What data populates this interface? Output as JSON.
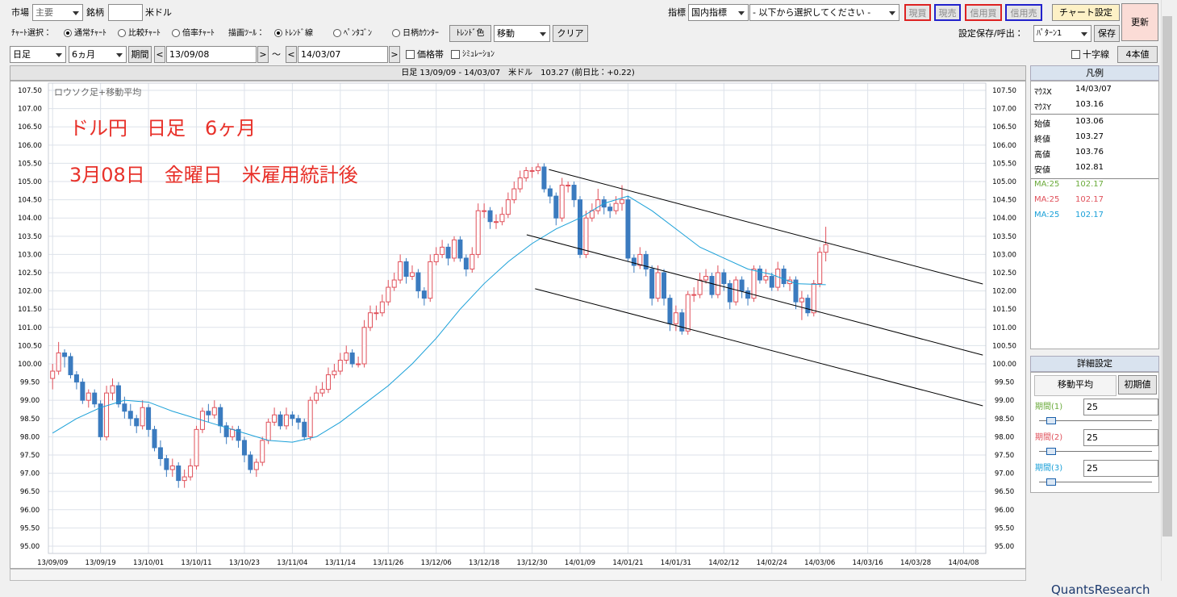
{
  "ui": {
    "market_label": "市場",
    "market": "主要",
    "symbol_label": "銘柄",
    "symbol": "米ドル",
    "indicator_label": "指標",
    "indicator": "国内指標",
    "indicator_select": "- 以下から選択してください -",
    "buy_spot": "現買",
    "sell_spot": "現売",
    "buy_margin": "信用買",
    "sell_margin": "信用売",
    "chart_settings": "チャート設定",
    "refresh": "更新",
    "chart_select_label": "ﾁｬｰﾄ選択：",
    "chart_modes": [
      "通常ﾁｬｰﾄ",
      "比較ﾁｬｰﾄ",
      "倍率ﾁｬｰﾄ"
    ],
    "draw_tool_label": "描画ﾂｰﾙ：",
    "draw_tools": [
      "ﾄﾚﾝﾄﾞ線",
      "ﾍﾟﾝﾀｺﾞﾝ",
      "日柄ｶｳﾝﾀｰ"
    ],
    "trend_color": "ﾄﾚﾝﾄﾞ色",
    "move": "移動",
    "clear": "クリア",
    "save_label": "設定保存/呼出：",
    "pattern": "ﾊﾟﾀｰﾝ1",
    "save": "保存",
    "bar_type": "日足",
    "span": "6ヵ月",
    "period": "期間",
    "prev": "<",
    "next": ">",
    "tilde": "～",
    "date_from": "13/09/08",
    "date_to": "14/03/07",
    "price_band": "価格帯",
    "simulation": "ｼﾐｭﾚｰｼｮﾝ",
    "crosshair": "十字線",
    "four_values": "4本値",
    "chart_header": "日足 13/09/09 - 14/03/07　米ドル　103.27 (前日比：+0.22)",
    "legend_title": "凡例",
    "legend_rows": [
      [
        "ﾏｳｽX",
        "14/03/07"
      ],
      [
        "ﾏｳｽY",
        "103.16"
      ],
      [
        "始値",
        "103.06"
      ],
      [
        "終値",
        "103.27"
      ],
      [
        "高値",
        "103.76"
      ],
      [
        "安値",
        "102.81"
      ],
      [
        "MA:25",
        "102.17"
      ],
      [
        "MA:25",
        "102.17"
      ],
      [
        "MA:25",
        "102.17"
      ]
    ],
    "detail_title": "詳細設定",
    "tab_ma": "移動平均",
    "defaults": "初期値",
    "periods": [
      [
        "期間(1)",
        "25"
      ],
      [
        "期間(2)",
        "25"
      ],
      [
        "期間(3)",
        "25"
      ]
    ],
    "logo": "QuantsResearch"
  },
  "chart_data": {
    "type": "candlestick",
    "subtitle": "ロウソク足+移動平均",
    "annotations": [
      "ドル円　日足　6ヶ月",
      "3月08日　金曜日　米雇用統計後"
    ],
    "up_color": "#e0505a",
    "down_color": "#3b7bbf",
    "grid": true,
    "xlim": [
      -0.7,
      155.7
    ],
    "ylim": [
      94.8,
      107.7
    ],
    "xticks": [
      {
        "value": 0,
        "label": "13/09/09"
      },
      {
        "value": 8,
        "label": "13/09/19"
      },
      {
        "value": 16,
        "label": "13/10/01"
      },
      {
        "value": 24,
        "label": "13/10/11"
      },
      {
        "value": 32,
        "label": "13/10/23"
      },
      {
        "value": 40,
        "label": "13/11/04"
      },
      {
        "value": 48,
        "label": "13/11/14"
      },
      {
        "value": 56,
        "label": "13/11/26"
      },
      {
        "value": 64,
        "label": "13/12/06"
      },
      {
        "value": 72,
        "label": "13/12/18"
      },
      {
        "value": 80,
        "label": "13/12/30"
      },
      {
        "value": 88,
        "label": "14/01/09"
      },
      {
        "value": 96,
        "label": "14/01/21"
      },
      {
        "value": 104,
        "label": "14/01/31"
      },
      {
        "value": 112,
        "label": "14/02/12"
      },
      {
        "value": 120,
        "label": "14/02/24"
      },
      {
        "value": 128,
        "label": "14/03/06"
      },
      {
        "value": 136,
        "label": "14/03/16"
      },
      {
        "value": 144,
        "label": "14/03/28"
      },
      {
        "value": 152,
        "label": "14/04/08"
      }
    ],
    "yticks": [
      {
        "value": 95,
        "label": "95.00"
      },
      {
        "value": 95.5,
        "label": "95.50"
      },
      {
        "value": 96,
        "label": "96.00"
      },
      {
        "value": 96.5,
        "label": "96.50"
      },
      {
        "value": 97,
        "label": "97.00"
      },
      {
        "value": 97.5,
        "label": "97.50"
      },
      {
        "value": 98,
        "label": "98.00"
      },
      {
        "value": 98.5,
        "label": "98.50"
      },
      {
        "value": 99,
        "label": "99.00"
      },
      {
        "value": 99.5,
        "label": "99.50"
      },
      {
        "value": 100,
        "label": "100.00"
      },
      {
        "value": 100.5,
        "label": "100.50"
      },
      {
        "value": 101,
        "label": "101.00"
      },
      {
        "value": 101.5,
        "label": "101.50"
      },
      {
        "value": 102,
        "label": "102.00"
      },
      {
        "value": 102.5,
        "label": "102.50"
      },
      {
        "value": 103,
        "label": "103.00"
      },
      {
        "value": 103.5,
        "label": "103.50"
      },
      {
        "value": 104,
        "label": "104.00"
      },
      {
        "value": 104.5,
        "label": "104.50"
      },
      {
        "value": 105,
        "label": "105.00"
      },
      {
        "value": 105.5,
        "label": "105.50"
      },
      {
        "value": 106,
        "label": "106.00"
      },
      {
        "value": 106.5,
        "label": "106.50"
      },
      {
        "value": 107,
        "label": "107.00"
      },
      {
        "value": 107.5,
        "label": "107.50"
      }
    ],
    "candles": [
      [
        99.6,
        100.0,
        99.3,
        99.8
      ],
      [
        99.8,
        100.6,
        99.7,
        100.3
      ],
      [
        100.3,
        100.4,
        99.9,
        100.2
      ],
      [
        100.2,
        100.3,
        99.6,
        99.7
      ],
      [
        99.7,
        99.8,
        99.3,
        99.5
      ],
      [
        99.5,
        99.6,
        98.9,
        99.0
      ],
      [
        99.0,
        99.3,
        98.8,
        99.2
      ],
      [
        99.2,
        99.3,
        98.8,
        98.9
      ],
      [
        98.9,
        99.0,
        97.9,
        98.0
      ],
      [
        98.0,
        99.4,
        97.9,
        99.2
      ],
      [
        99.2,
        99.6,
        99.0,
        99.4
      ],
      [
        99.4,
        99.5,
        98.8,
        98.9
      ],
      [
        98.9,
        99.1,
        98.5,
        98.7
      ],
      [
        98.7,
        98.9,
        98.3,
        98.5
      ],
      [
        98.5,
        98.6,
        98.1,
        98.3
      ],
      [
        98.3,
        99.0,
        98.2,
        98.8
      ],
      [
        98.8,
        98.9,
        98.0,
        98.2
      ],
      [
        98.2,
        98.3,
        97.6,
        97.7
      ],
      [
        97.7,
        97.9,
        97.2,
        97.4
      ],
      [
        97.4,
        97.5,
        96.9,
        97.1
      ],
      [
        97.1,
        97.4,
        96.9,
        97.2
      ],
      [
        97.2,
        97.3,
        96.6,
        96.8
      ],
      [
        96.8,
        97.1,
        96.6,
        96.9
      ],
      [
        96.9,
        97.4,
        96.8,
        97.2
      ],
      [
        97.2,
        98.3,
        97.1,
        98.2
      ],
      [
        98.2,
        98.8,
        98.1,
        98.7
      ],
      [
        98.7,
        98.9,
        98.4,
        98.6
      ],
      [
        98.6,
        99.0,
        98.5,
        98.8
      ],
      [
        98.8,
        98.9,
        98.1,
        98.3
      ],
      [
        98.3,
        98.4,
        97.8,
        98.0
      ],
      [
        98.0,
        98.3,
        97.9,
        98.2
      ],
      [
        98.2,
        98.3,
        97.7,
        97.9
      ],
      [
        97.9,
        98.0,
        97.3,
        97.5
      ],
      [
        97.5,
        97.6,
        97.0,
        97.1
      ],
      [
        97.1,
        97.4,
        96.9,
        97.3
      ],
      [
        97.3,
        98.0,
        97.2,
        97.9
      ],
      [
        97.9,
        98.5,
        97.8,
        98.4
      ],
      [
        98.4,
        98.8,
        98.3,
        98.6
      ],
      [
        98.6,
        98.7,
        98.2,
        98.3
      ],
      [
        98.3,
        98.8,
        98.2,
        98.6
      ],
      [
        98.6,
        98.7,
        98.3,
        98.5
      ],
      [
        98.5,
        98.6,
        98.2,
        98.4
      ],
      [
        98.4,
        98.5,
        97.9,
        98.0
      ],
      [
        98.0,
        99.1,
        97.9,
        99.0
      ],
      [
        99.0,
        99.4,
        98.9,
        99.2
      ],
      [
        99.2,
        99.5,
        99.1,
        99.3
      ],
      [
        99.3,
        99.9,
        99.2,
        99.7
      ],
      [
        99.7,
        100.0,
        99.6,
        99.8
      ],
      [
        99.8,
        100.3,
        99.7,
        100.1
      ],
      [
        100.1,
        100.5,
        100.0,
        100.3
      ],
      [
        100.3,
        100.4,
        99.9,
        100.0
      ],
      [
        100.0,
        100.2,
        99.9,
        100.0
      ],
      [
        100.0,
        101.2,
        99.9,
        101.0
      ],
      [
        101.0,
        101.6,
        100.9,
        101.4
      ],
      [
        101.4,
        101.6,
        101.2,
        101.4
      ],
      [
        101.4,
        101.9,
        101.3,
        101.7
      ],
      [
        101.7,
        102.3,
        101.6,
        102.1
      ],
      [
        102.1,
        102.5,
        102.0,
        102.3
      ],
      [
        102.3,
        103.0,
        102.2,
        102.8
      ],
      [
        102.8,
        102.9,
        102.2,
        102.4
      ],
      [
        102.4,
        102.7,
        102.3,
        102.5
      ],
      [
        102.5,
        102.6,
        101.8,
        102.0
      ],
      [
        102.0,
        102.1,
        101.6,
        101.8
      ],
      [
        101.8,
        103.0,
        101.7,
        102.8
      ],
      [
        102.8,
        103.2,
        102.7,
        103.0
      ],
      [
        103.0,
        103.4,
        102.9,
        103.2
      ],
      [
        103.2,
        103.3,
        102.7,
        102.9
      ],
      [
        102.9,
        103.5,
        102.8,
        103.4
      ],
      [
        103.4,
        103.5,
        102.8,
        102.9
      ],
      [
        102.9,
        103.0,
        102.4,
        102.6
      ],
      [
        102.6,
        103.2,
        102.5,
        103.0
      ],
      [
        103.0,
        104.4,
        102.9,
        104.2
      ],
      [
        104.2,
        104.4,
        104.0,
        104.2
      ],
      [
        104.2,
        104.3,
        103.7,
        103.9
      ],
      [
        103.9,
        104.1,
        103.7,
        103.9
      ],
      [
        103.9,
        104.3,
        103.8,
        104.1
      ],
      [
        104.1,
        104.7,
        104.0,
        104.5
      ],
      [
        104.5,
        105.0,
        104.4,
        104.8
      ],
      [
        104.8,
        105.3,
        104.7,
        105.1
      ],
      [
        105.1,
        105.4,
        105.0,
        105.3
      ],
      [
        105.3,
        105.4,
        105.1,
        105.3
      ],
      [
        105.3,
        105.5,
        105.2,
        105.4
      ],
      [
        105.4,
        105.5,
        104.7,
        104.8
      ],
      [
        104.8,
        104.9,
        104.4,
        104.6
      ],
      [
        104.6,
        104.7,
        103.8,
        104.0
      ],
      [
        104.0,
        105.1,
        103.9,
        104.9
      ],
      [
        104.9,
        105.0,
        104.7,
        104.9
      ],
      [
        104.9,
        105.0,
        104.3,
        104.5
      ],
      [
        104.5,
        104.6,
        102.9,
        103.0
      ],
      [
        103.0,
        104.2,
        102.9,
        104.0
      ],
      [
        104.0,
        104.4,
        103.9,
        104.2
      ],
      [
        104.2,
        104.8,
        104.1,
        104.5
      ],
      [
        104.5,
        104.6,
        104.1,
        104.3
      ],
      [
        104.3,
        104.4,
        104.0,
        104.2
      ],
      [
        104.2,
        104.6,
        104.1,
        104.4
      ],
      [
        104.4,
        104.9,
        104.2,
        104.5
      ],
      [
        104.5,
        104.6,
        102.8,
        102.9
      ],
      [
        102.9,
        103.0,
        102.5,
        102.7
      ],
      [
        102.7,
        103.2,
        102.6,
        103.0
      ],
      [
        103.0,
        103.1,
        102.4,
        102.6
      ],
      [
        102.6,
        102.7,
        101.6,
        101.8
      ],
      [
        101.8,
        102.7,
        101.7,
        102.5
      ],
      [
        102.5,
        102.6,
        101.6,
        101.8
      ],
      [
        101.8,
        101.9,
        100.9,
        101.1
      ],
      [
        101.1,
        101.6,
        100.9,
        101.4
      ],
      [
        101.4,
        101.5,
        100.8,
        100.9
      ],
      [
        100.9,
        102.0,
        100.8,
        101.9
      ],
      [
        101.9,
        102.1,
        101.7,
        101.9
      ],
      [
        101.9,
        102.5,
        101.8,
        102.3
      ],
      [
        102.3,
        102.6,
        102.2,
        102.4
      ],
      [
        102.4,
        102.5,
        101.8,
        101.9
      ],
      [
        101.9,
        102.7,
        101.8,
        102.5
      ],
      [
        102.5,
        102.6,
        102.0,
        102.2
      ],
      [
        102.2,
        102.3,
        101.5,
        101.7
      ],
      [
        101.7,
        102.4,
        101.6,
        102.3
      ],
      [
        102.3,
        102.4,
        101.8,
        102.0
      ],
      [
        102.0,
        102.1,
        101.6,
        101.8
      ],
      [
        101.8,
        102.7,
        101.7,
        102.6
      ],
      [
        102.6,
        102.7,
        102.2,
        102.3
      ],
      [
        102.3,
        102.6,
        102.2,
        102.4
      ],
      [
        102.4,
        102.5,
        102.0,
        102.1
      ],
      [
        102.1,
        102.8,
        102.0,
        102.6
      ],
      [
        102.6,
        102.7,
        102.1,
        102.2
      ],
      [
        102.2,
        102.4,
        102.0,
        102.3
      ],
      [
        102.3,
        102.4,
        101.5,
        101.7
      ],
      [
        101.7,
        102.0,
        101.2,
        101.8
      ],
      [
        101.8,
        101.9,
        101.3,
        101.4
      ],
      [
        101.4,
        102.3,
        101.3,
        102.2
      ],
      [
        102.2,
        103.2,
        102.1,
        103.06
      ],
      [
        103.06,
        103.76,
        102.81,
        103.27
      ]
    ],
    "ma": {
      "color": "#1aa0d8",
      "x": [
        0,
        4,
        8,
        12,
        16,
        20,
        24,
        28,
        32,
        36,
        40,
        44,
        48,
        52,
        56,
        60,
        64,
        68,
        72,
        76,
        80,
        84,
        88,
        92,
        96,
        100,
        104,
        108,
        112,
        116,
        120,
        124,
        129
      ],
      "values": [
        98.1,
        98.5,
        98.8,
        99.0,
        98.95,
        98.7,
        98.5,
        98.3,
        98.1,
        97.9,
        97.85,
        98.0,
        98.4,
        98.9,
        99.4,
        100.0,
        100.7,
        101.5,
        102.2,
        102.8,
        103.3,
        103.7,
        104.0,
        104.4,
        104.6,
        104.2,
        103.7,
        103.2,
        102.9,
        102.6,
        102.45,
        102.2,
        102.17
      ]
    },
    "trend_lines": {
      "color": "#000000",
      "lines": [
        {
          "x": [
            82.8,
            155.2
          ],
          "y": [
            105.33,
            102.19
          ]
        },
        {
          "x": [
            79.1,
            155.2
          ],
          "y": [
            103.54,
            100.24
          ]
        },
        {
          "x": [
            80.5,
            155.2
          ],
          "y": [
            102.06,
            98.85
          ]
        }
      ]
    }
  }
}
